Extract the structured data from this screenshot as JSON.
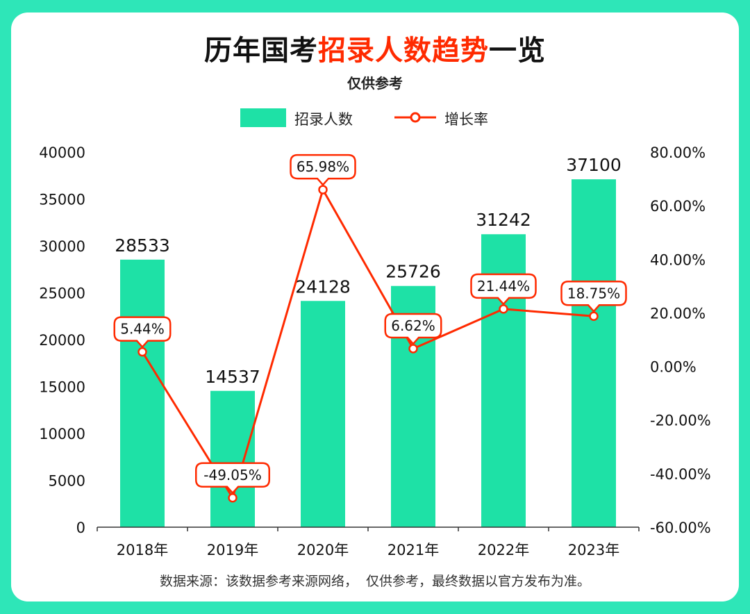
{
  "title": {
    "part1": "历年国考",
    "part2": "招录人数趋势",
    "part3": "一览"
  },
  "subtitle": "仅供参考",
  "legend": {
    "bar": "招录人数",
    "line": "增长率"
  },
  "footer": "数据来源：该数据参考来源网络，  仅供参考，最终数据以官方发布为准。",
  "colors": {
    "bar": "#1ee1a6",
    "line": "#ff2a00",
    "background": "#2ee6b8"
  },
  "chart_data": {
    "type": "bar",
    "categories": [
      "2018年",
      "2019年",
      "2020年",
      "2021年",
      "2022年",
      "2023年"
    ],
    "series": [
      {
        "name": "招录人数",
        "type": "bar",
        "axis": "left",
        "values": [
          28533,
          14537,
          24128,
          25726,
          31242,
          37100
        ]
      },
      {
        "name": "增长率",
        "type": "line",
        "axis": "right",
        "values": [
          5.44,
          -49.05,
          65.98,
          6.62,
          21.44,
          18.75
        ]
      }
    ],
    "bar_labels": [
      "28533",
      "14537",
      "24128",
      "25726",
      "31242",
      "37100"
    ],
    "line_labels": [
      "5.44%",
      "-49.05%",
      "65.98%",
      "6.62%",
      "21.44%",
      "18.75%"
    ],
    "left_axis": {
      "ylim": [
        0,
        40000
      ],
      "ticks": [
        "0",
        "5000",
        "10000",
        "15000",
        "20000",
        "25000",
        "30000",
        "35000",
        "40000"
      ]
    },
    "right_axis": {
      "ylim": [
        -60,
        80
      ],
      "ticks": [
        "-60.00%",
        "-40.00%",
        "-20.00%",
        "0.00%",
        "20.00%",
        "40.00%",
        "60.00%",
        "80.00%"
      ]
    },
    "grid": false,
    "legend_position": "top"
  }
}
